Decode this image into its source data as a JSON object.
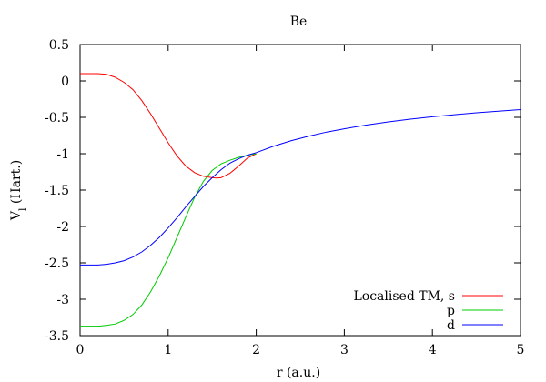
{
  "chart_data": {
    "type": "line",
    "title": "Be",
    "xlabel": "r (a.u.)",
    "ylabel": "V",
    "ylabel_subscript": "l",
    "ylabel_suffix": " (Hart.)",
    "xlim": [
      0,
      5
    ],
    "ylim": [
      -3.5,
      0.5
    ],
    "xticks": [
      0,
      1,
      2,
      3,
      4,
      5
    ],
    "xtick_labels": [
      "0",
      "1",
      "2",
      "3",
      "4",
      "5"
    ],
    "yticks": [
      0.5,
      0,
      -0.5,
      -1,
      -1.5,
      -2,
      -2.5,
      -3,
      -3.5
    ],
    "ytick_labels": [
      "0.5",
      "0",
      "-0.5",
      "-1",
      "-1.5",
      "-2",
      "-2.5",
      "-3",
      "-3.5"
    ],
    "grid": false,
    "legend_position": "bottom-right",
    "series": [
      {
        "name": "Localised TM, s",
        "color": "#ff0000",
        "x": [
          0,
          0.1,
          0.2,
          0.3,
          0.4,
          0.5,
          0.6,
          0.7,
          0.8,
          0.9,
          1.0,
          1.1,
          1.2,
          1.3,
          1.4,
          1.5,
          1.55,
          1.6,
          1.7,
          1.8,
          1.9,
          2.0
        ],
        "y": [
          0.1,
          0.1,
          0.1,
          0.09,
          0.05,
          -0.02,
          -0.12,
          -0.27,
          -0.45,
          -0.65,
          -0.85,
          -1.03,
          -1.17,
          -1.26,
          -1.31,
          -1.33,
          -1.335,
          -1.33,
          -1.27,
          -1.17,
          -1.06,
          -1.0
        ]
      },
      {
        "name": "p",
        "color": "#00cc00",
        "x": [
          0,
          0.1,
          0.2,
          0.3,
          0.4,
          0.5,
          0.6,
          0.7,
          0.8,
          0.9,
          1.0,
          1.1,
          1.2,
          1.3,
          1.4,
          1.5,
          1.6,
          1.7,
          1.8,
          1.9,
          2.0
        ],
        "y": [
          -3.37,
          -3.37,
          -3.37,
          -3.36,
          -3.34,
          -3.29,
          -3.21,
          -3.08,
          -2.9,
          -2.68,
          -2.43,
          -2.15,
          -1.87,
          -1.6,
          -1.38,
          -1.23,
          -1.14,
          -1.09,
          -1.05,
          -1.02,
          -1.0
        ]
      },
      {
        "name": "d",
        "color": "#0000ff",
        "x": [
          0,
          0.1,
          0.2,
          0.3,
          0.4,
          0.5,
          0.6,
          0.7,
          0.8,
          0.9,
          1.0,
          1.1,
          1.2,
          1.3,
          1.4,
          1.5,
          1.6,
          1.7,
          1.8,
          1.9,
          2.0,
          2.2,
          2.4,
          2.6,
          2.8,
          3.0,
          3.25,
          3.5,
          3.75,
          4.0,
          4.25,
          4.5,
          4.75,
          5.0
        ],
        "y": [
          -2.53,
          -2.53,
          -2.53,
          -2.52,
          -2.5,
          -2.47,
          -2.42,
          -2.35,
          -2.26,
          -2.15,
          -2.02,
          -1.88,
          -1.73,
          -1.59,
          -1.45,
          -1.33,
          -1.22,
          -1.13,
          -1.07,
          -1.02,
          -0.985,
          -0.895,
          -0.82,
          -0.757,
          -0.703,
          -0.657,
          -0.606,
          -0.563,
          -0.525,
          -0.492,
          -0.464,
          -0.438,
          -0.415,
          -0.394
        ]
      }
    ]
  }
}
